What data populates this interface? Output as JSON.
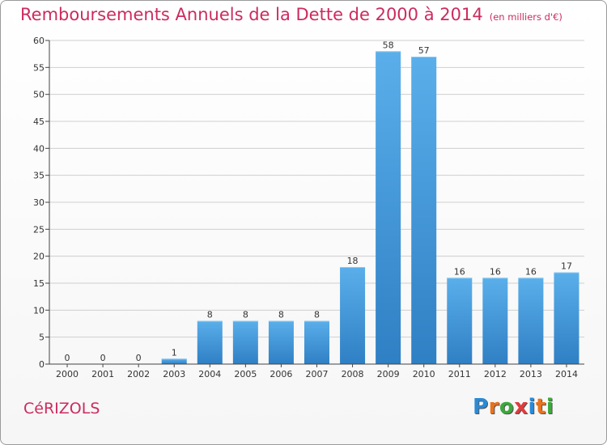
{
  "header": {
    "title": "Remboursements Annuels de la Dette de 2000 à 2014",
    "unit": "(en milliers d'€)"
  },
  "footer": {
    "commune": "CéRIZOLS",
    "logo_letters": [
      "P",
      "r",
      "o",
      "x",
      "i",
      "t",
      "i"
    ],
    "logo_colors": [
      "#2a8ad6",
      "#e8731d",
      "#3ca83c",
      "#e03c3c",
      "#2a8ad6",
      "#e8731d",
      "#3ca83c"
    ]
  },
  "colors": {
    "bar_top": "#5aafea",
    "bar_bottom": "#2f7fc4",
    "grid": "#cfcfcf",
    "axis": "#444444"
  },
  "chart_data": {
    "type": "bar",
    "categories": [
      "2000",
      "2001",
      "2002",
      "2003",
      "2004",
      "2005",
      "2006",
      "2007",
      "2008",
      "2009",
      "2010",
      "2011",
      "2012",
      "2013",
      "2014"
    ],
    "values": [
      0,
      0,
      0,
      1,
      8,
      8,
      8,
      8,
      18,
      58,
      57,
      16,
      16,
      16,
      17
    ],
    "title": "Remboursements Annuels de la Dette de 2000 à 2014",
    "subtitle": "(en milliers d'€)",
    "ylim": [
      0,
      60
    ],
    "yticks": [
      0,
      5,
      10,
      15,
      20,
      25,
      30,
      35,
      40,
      45,
      50,
      55,
      60
    ],
    "grid": true,
    "data_labels": true
  }
}
